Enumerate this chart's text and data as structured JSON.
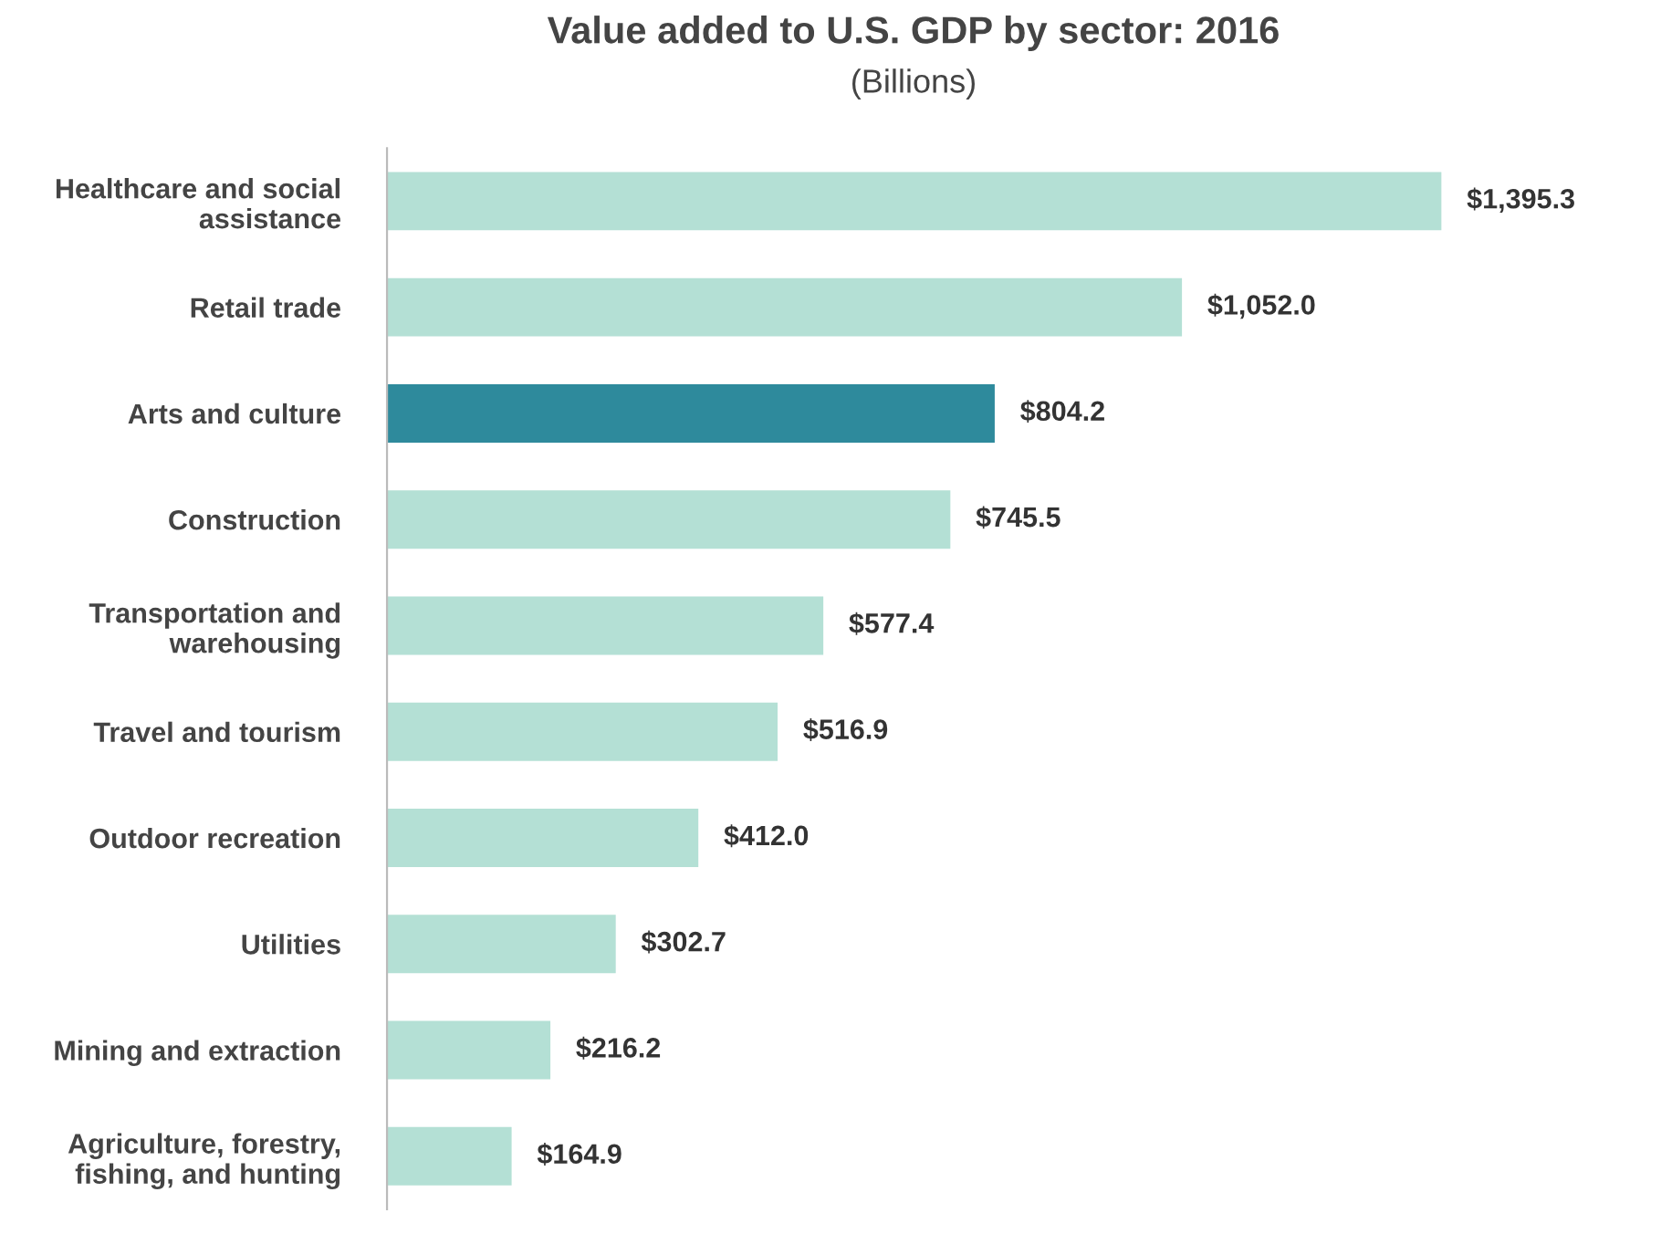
{
  "chart_data": {
    "type": "bar",
    "orientation": "horizontal",
    "title": "Value added to U.S. GDP by sector: 2016",
    "subtitle": "(Billions)",
    "categories": [
      "Healthcare and social\nassistance",
      "Retail trade",
      "Arts and culture",
      "Construction",
      "Transportation and\nwarehousing",
      "Travel and tourism",
      "Outdoor recreation",
      "Utilities",
      "Mining and extraction",
      "Agriculture, forestry,\nfishing, and hunting"
    ],
    "values": [
      1395.3,
      1052.0,
      804.2,
      745.5,
      577.4,
      516.9,
      412.0,
      302.7,
      216.2,
      164.9
    ],
    "value_labels": [
      "$1,395.3",
      "$1,052.0",
      "$804.2",
      "$745.5",
      "$577.4",
      "$516.9",
      "$412.0",
      "$302.7",
      "$216.2",
      "$164.9"
    ],
    "colors": [
      "#b4e0d5",
      "#b4e0d5",
      "#2e8a9c",
      "#b4e0d5",
      "#b4e0d5",
      "#b4e0d5",
      "#b4e0d5",
      "#b4e0d5",
      "#b4e0d5",
      "#b4e0d5"
    ],
    "grid": false,
    "legend": false
  }
}
